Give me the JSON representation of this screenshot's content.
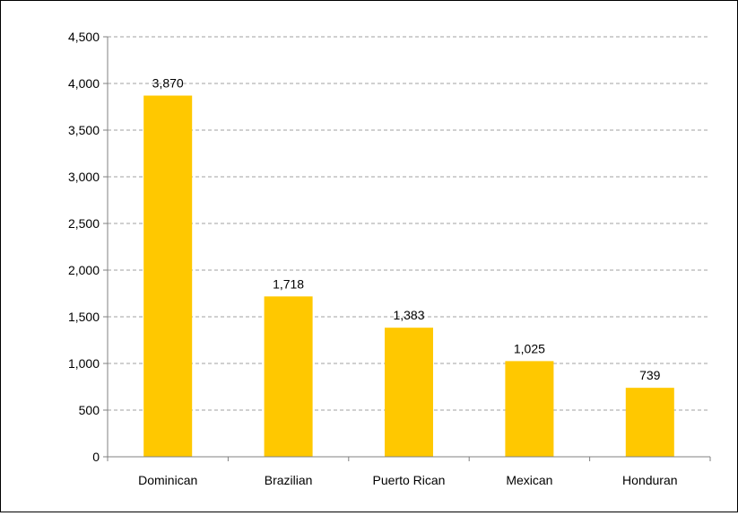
{
  "chart_data": {
    "type": "bar",
    "categories": [
      "Dominican",
      "Brazilian",
      "Puerto Rican",
      "Mexican",
      "Honduran"
    ],
    "values": [
      3870,
      1718,
      1383,
      1025,
      739
    ],
    "value_labels": [
      "3,870",
      "1,718",
      "1,383",
      "1,025",
      "739"
    ],
    "y_ticks": [
      0,
      500,
      1000,
      1500,
      2000,
      2500,
      3000,
      3500,
      4000,
      4500
    ],
    "y_tick_labels": [
      "0",
      "500",
      "1,000",
      "1,500",
      "2,000",
      "2,500",
      "3,000",
      "3,500",
      "4,000",
      "4,500"
    ],
    "ylim": [
      0,
      4500
    ],
    "title": "",
    "xlabel": "",
    "ylabel": "",
    "grid": "horizontal dashed",
    "legend": "none",
    "bar_color": "#FFC800",
    "gridline_color": "#A0A0A0"
  }
}
